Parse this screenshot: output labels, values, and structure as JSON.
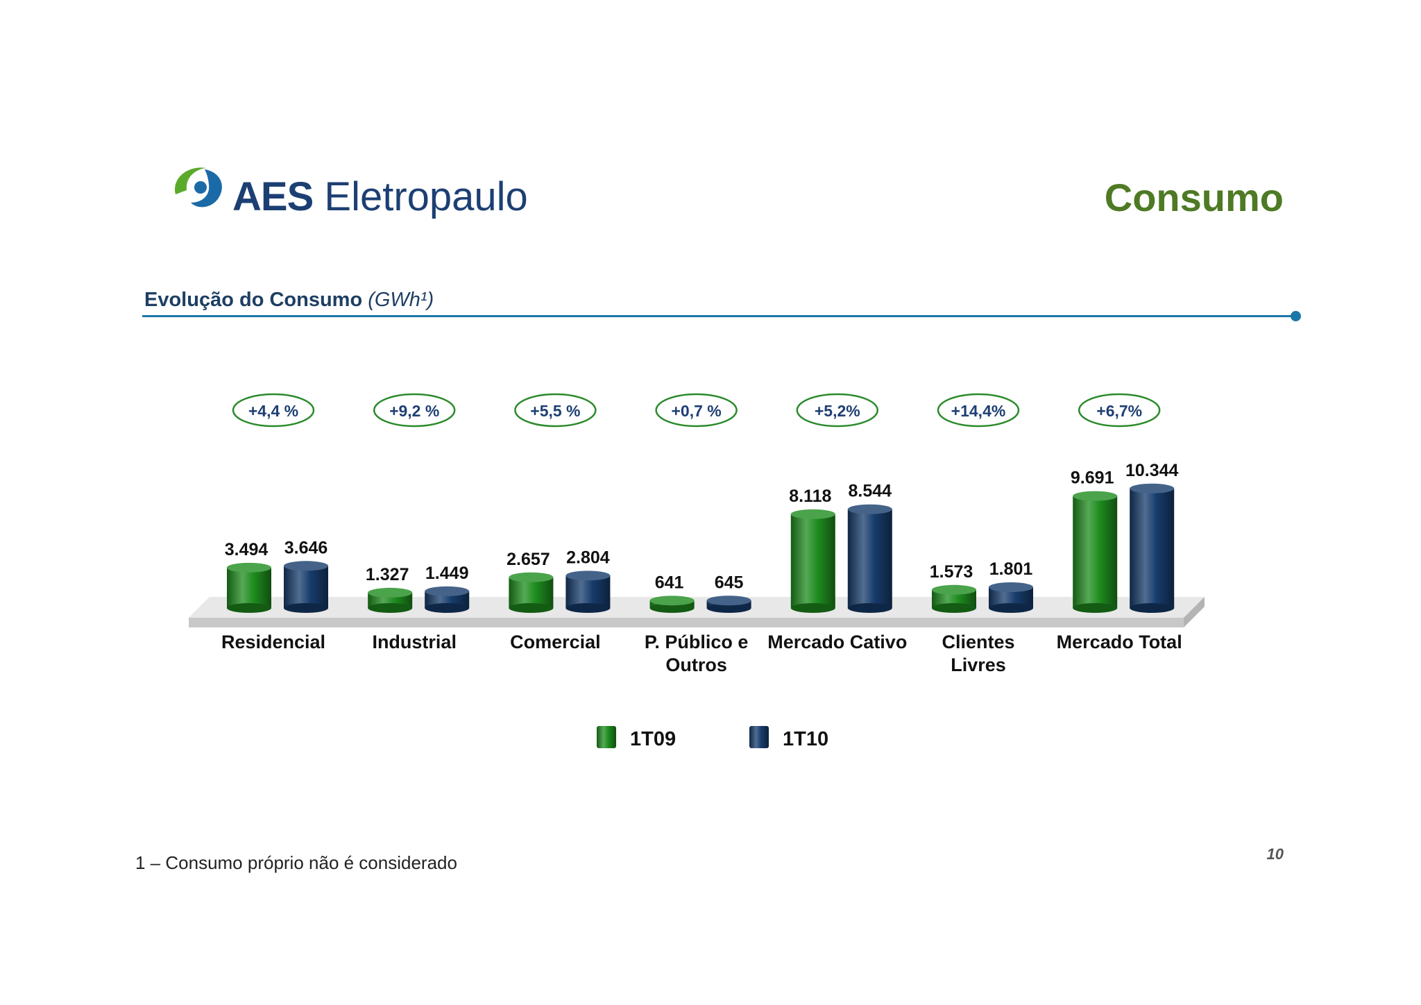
{
  "header": {
    "brand": "AES Eletropaulo",
    "brand_bold": "AES",
    "brand_rest": "Eletropaulo",
    "title": "Consumo"
  },
  "section": {
    "title": "Evolução do Consumo",
    "unit": "(GWh¹)"
  },
  "chart_data": {
    "type": "bar",
    "categories": [
      "Residencial",
      "Industrial",
      "Comercial",
      "P. Público e Outros",
      "Mercado Cativo",
      "Clientes Livres",
      "Mercado Total"
    ],
    "category_lines": [
      [
        "Residencial"
      ],
      [
        "Industrial"
      ],
      [
        "Comercial"
      ],
      [
        "P. Público e",
        "Outros"
      ],
      [
        "Mercado Cativo"
      ],
      [
        "Clientes",
        "Livres"
      ],
      [
        "Mercado Total"
      ]
    ],
    "series": [
      {
        "name": "1T09",
        "values": [
          3494,
          1327,
          2657,
          641,
          8118,
          1573,
          9691
        ],
        "labels": [
          "3.494",
          "1.327",
          "2.657",
          "641",
          "8.118",
          "1.573",
          "9.691"
        ],
        "color": "#1e8c1e"
      },
      {
        "name": "1T10",
        "values": [
          3646,
          1449,
          2804,
          645,
          8544,
          1801,
          10344
        ],
        "labels": [
          "3.646",
          "1.449",
          "2.804",
          "645",
          "8.544",
          "1.801",
          "10.344"
        ],
        "color": "#173c6c"
      }
    ],
    "growth_labels": [
      "+4,4 %",
      "+9,2 %",
      "+5,5 %",
      "+0,7 %",
      "+5,2%",
      "+14,4%",
      "+6,7%"
    ],
    "colors": {
      "growth_border": "#2a8a2a",
      "growth_text": "#1e3f73",
      "platform": "#c8c8c8"
    },
    "legend_placement": "bottom",
    "grid": false
  },
  "footnote": "1 – Consumo próprio não é considerado",
  "page_number": "10"
}
